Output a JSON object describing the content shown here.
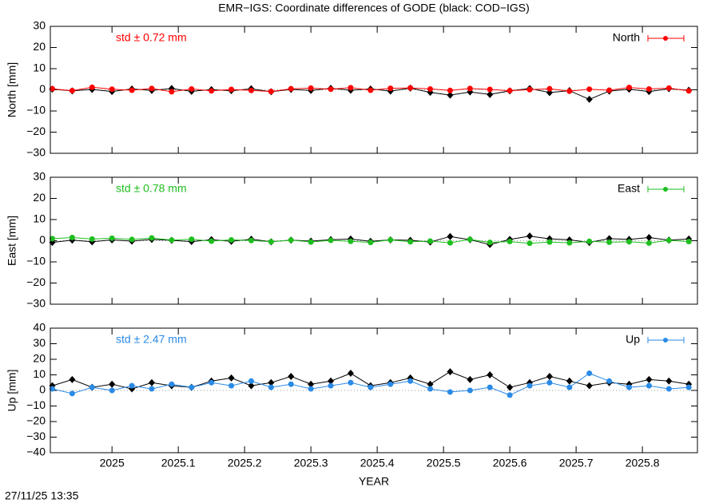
{
  "title": "EMR−IGS: Coordinate differences of GODE (black: COD−IGS)",
  "x_label": "YEAR",
  "timestamp": "27/11/25 13:35",
  "chart_data": [
    {
      "type": "line",
      "y_label": "North [mm]",
      "annotation": "std ± 0.72 mm",
      "xlim": [
        2024.907,
        2025.883
      ],
      "xticks": [
        2025,
        2025.1,
        2025.2,
        2025.3,
        2025.4,
        2025.5,
        2025.6,
        2025.7,
        2025.8
      ],
      "ylim": [
        -30,
        30
      ],
      "yticks": [
        30,
        20,
        10,
        0,
        {
          "value": -10,
          "label": "−10"
        },
        {
          "value": -20,
          "label": "−20"
        },
        {
          "value": -30,
          "label": "−30"
        }
      ],
      "x": [
        2024.91,
        2024.94,
        2024.97,
        2025.0,
        2025.03,
        2025.06,
        2025.09,
        2025.12,
        2025.15,
        2025.18,
        2025.21,
        2025.24,
        2025.27,
        2025.3,
        2025.33,
        2025.36,
        2025.39,
        2025.42,
        2025.45,
        2025.48,
        2025.51,
        2025.54,
        2025.57,
        2025.6,
        2025.63,
        2025.66,
        2025.69,
        2025.72,
        2025.75,
        2025.78,
        2025.81,
        2025.84,
        2025.87
      ],
      "series": [
        {
          "color": "#000000",
          "values": [
            0.3,
            -0.5,
            0.2,
            -0.8,
            0.4,
            -0.3,
            0.6,
            -0.7,
            0.1,
            -0.4,
            0.5,
            -0.9,
            0.2,
            -0.3,
            0.7,
            -0.2,
            0.4,
            -0.6,
            0.8,
            -1.2,
            -2.5,
            -1.0,
            -2.2,
            -0.5,
            0.6,
            -1.3,
            -0.4,
            -4.5,
            -0.6,
            0.3,
            -0.8,
            0.5,
            -0.2
          ]
        },
        {
          "name": "North",
          "color": "#ff0000",
          "values": [
            0.5,
            -0.4,
            1.2,
            0.3,
            -0.2,
            0.6,
            -0.9,
            0.4,
            -0.5,
            0.2,
            -0.3,
            -0.8,
            0.5,
            0.8,
            0.3,
            1.0,
            -0.2,
            0.7,
            0.9,
            0.4,
            -0.3,
            0.6,
            0.2,
            -0.4,
            0.1,
            0.5,
            -0.6,
            0.3,
            -0.2,
            1.1,
            0.4,
            0.8,
            -0.5
          ]
        }
      ]
    },
    {
      "type": "line",
      "y_label": "East [mm]",
      "annotation": "std ± 0.78 mm",
      "xlim": [
        2024.907,
        2025.883
      ],
      "xticks": [
        2025,
        2025.1,
        2025.2,
        2025.3,
        2025.4,
        2025.5,
        2025.6,
        2025.7,
        2025.8
      ],
      "ylim": [
        -30,
        30
      ],
      "yticks": [
        30,
        20,
        10,
        0,
        {
          "value": -10,
          "label": "−10"
        },
        {
          "value": -20,
          "label": "−20"
        },
        {
          "value": -30,
          "label": "−30"
        }
      ],
      "x": [
        2024.91,
        2024.94,
        2024.97,
        2025.0,
        2025.03,
        2025.06,
        2025.09,
        2025.12,
        2025.15,
        2025.18,
        2025.21,
        2025.24,
        2025.27,
        2025.3,
        2025.33,
        2025.36,
        2025.39,
        2025.42,
        2025.45,
        2025.48,
        2025.51,
        2025.54,
        2025.57,
        2025.6,
        2025.63,
        2025.66,
        2025.69,
        2025.72,
        2025.75,
        2025.78,
        2025.81,
        2025.84,
        2025.87
      ],
      "series": [
        {
          "color": "#000000",
          "values": [
            -0.8,
            0.3,
            -0.5,
            0.4,
            -0.2,
            0.6,
            0.2,
            -0.4,
            0.5,
            -0.3,
            0.7,
            -0.5,
            0.3,
            -0.2,
            0.5,
            0.8,
            -0.3,
            0.4,
            0.2,
            -0.6,
            2.0,
            0.5,
            -1.8,
            0.6,
            2.2,
            0.9,
            0.4,
            -0.8,
            1.0,
            0.6,
            1.5,
            0.3,
            0.8
          ]
        },
        {
          "name": "East",
          "color": "#1ebe1e",
          "values": [
            1.0,
            1.5,
            0.8,
            1.2,
            0.6,
            1.3,
            0.3,
            0.7,
            -0.2,
            0.4,
            0.1,
            -0.5,
            0.3,
            -0.6,
            0.2,
            -0.3,
            -0.8,
            0.4,
            -0.5,
            -0.2,
            -1.0,
            0.6,
            -0.8,
            -0.4,
            -1.2,
            -0.6,
            -1.0,
            -0.3,
            -0.7,
            -0.5,
            -1.1,
            0.2,
            -0.4
          ]
        }
      ]
    },
    {
      "type": "line",
      "y_label": "Up [mm]",
      "annotation": "std ± 2.47 mm",
      "xlim": [
        2024.907,
        2025.883
      ],
      "xticks": [
        2025,
        2025.1,
        2025.2,
        2025.3,
        2025.4,
        2025.5,
        2025.6,
        2025.7,
        2025.8
      ],
      "ylim": [
        -40,
        40
      ],
      "yticks": [
        40,
        30,
        20,
        10,
        0,
        {
          "value": -10,
          "label": "−10"
        },
        {
          "value": -20,
          "label": "−20"
        },
        {
          "value": -30,
          "label": "−30"
        },
        {
          "value": -40,
          "label": "−40"
        }
      ],
      "x": [
        2024.91,
        2024.94,
        2024.97,
        2025.0,
        2025.03,
        2025.06,
        2025.09,
        2025.12,
        2025.15,
        2025.18,
        2025.21,
        2025.24,
        2025.27,
        2025.3,
        2025.33,
        2025.36,
        2025.39,
        2025.42,
        2025.45,
        2025.48,
        2025.51,
        2025.54,
        2025.57,
        2025.6,
        2025.63,
        2025.66,
        2025.69,
        2025.72,
        2025.75,
        2025.78,
        2025.81,
        2025.84,
        2025.87
      ],
      "series": [
        {
          "color": "#000000",
          "values": [
            3,
            7,
            2,
            4,
            1,
            5,
            3,
            2,
            6,
            8,
            3,
            5,
            9,
            4,
            6,
            11,
            3,
            5,
            8,
            4,
            12,
            7,
            10,
            2,
            5,
            9,
            6,
            3,
            5,
            4,
            7,
            6,
            4
          ]
        },
        {
          "name": "Up",
          "color": "#2a8ae6",
          "values": [
            1,
            -2,
            2,
            0,
            3,
            1,
            4,
            2,
            5,
            3,
            6,
            2,
            4,
            1,
            3,
            5,
            2,
            4,
            6,
            1,
            -1,
            0,
            2,
            -3,
            3,
            5,
            2,
            11,
            6,
            2,
            3,
            1,
            2
          ]
        }
      ]
    }
  ]
}
